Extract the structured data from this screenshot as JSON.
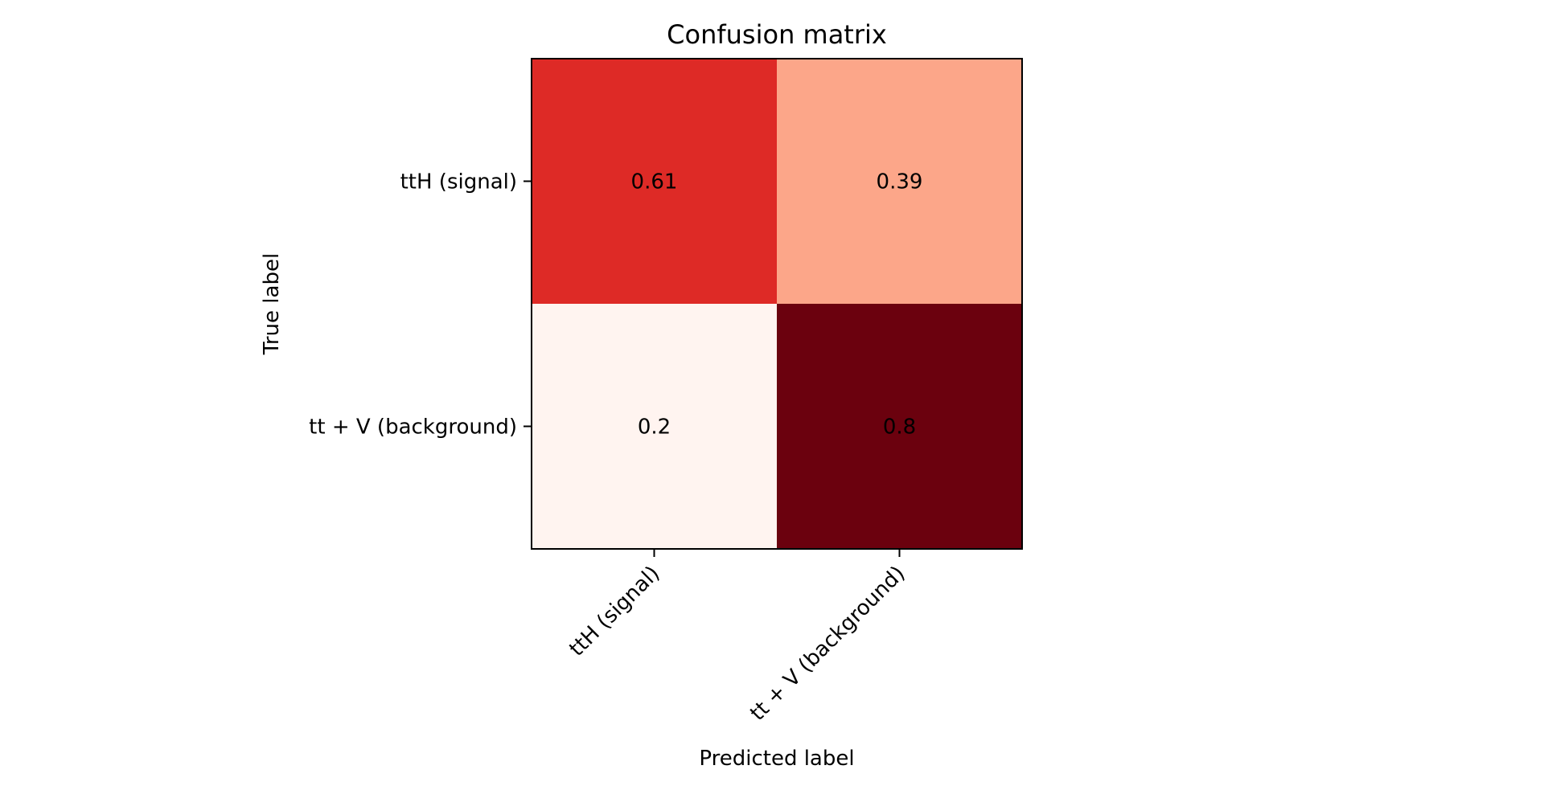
{
  "chart_data": {
    "type": "heatmap",
    "title": "Confusion matrix",
    "xlabel": "Predicted label",
    "ylabel": "True label",
    "x_categories": [
      "ttH (signal)",
      "tt + V (background)"
    ],
    "y_categories": [
      "ttH (signal)",
      "tt + V (background)"
    ],
    "values": [
      [
        0.61,
        0.39
      ],
      [
        0.2,
        0.8
      ]
    ],
    "value_labels": [
      [
        "0.61",
        "0.39"
      ],
      [
        "0.2",
        "0.8"
      ]
    ],
    "value_range": [
      0.2,
      0.8
    ],
    "colormap": "Reds",
    "cell_colors": [
      [
        "#de2a26",
        "#fca689"
      ],
      [
        "#fff4f0",
        "#6b010e"
      ]
    ],
    "grid": false,
    "legend": "none"
  }
}
